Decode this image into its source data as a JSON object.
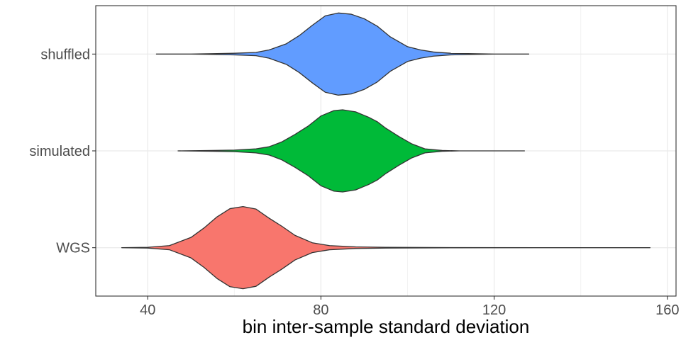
{
  "chart_data": {
    "type": "violin",
    "orientation": "horizontal",
    "xlabel": "bin inter-sample standard deviation",
    "ylabel": "",
    "xlim": [
      28,
      162
    ],
    "x_ticks": [
      40,
      80,
      120,
      160
    ],
    "x_minor_ticks": [
      60,
      100,
      140
    ],
    "grid": true,
    "legend": "none",
    "categories": [
      "shuffled",
      "simulated",
      "WGS"
    ],
    "series": [
      {
        "name": "shuffled",
        "color": "#619CFF",
        "min": 42,
        "max": 128,
        "density": [
          [
            42,
            0.0
          ],
          [
            50,
            0.0
          ],
          [
            55,
            0.01
          ],
          [
            60,
            0.02
          ],
          [
            65,
            0.04
          ],
          [
            68,
            0.1
          ],
          [
            72,
            0.25
          ],
          [
            75,
            0.45
          ],
          [
            78,
            0.7
          ],
          [
            81,
            0.93
          ],
          [
            84,
            1.0
          ],
          [
            87,
            0.97
          ],
          [
            90,
            0.86
          ],
          [
            93,
            0.68
          ],
          [
            96,
            0.42
          ],
          [
            100,
            0.18
          ],
          [
            103,
            0.1
          ],
          [
            106,
            0.05
          ],
          [
            110,
            0.02
          ],
          [
            115,
            0.01
          ],
          [
            120,
            0.0
          ],
          [
            128,
            0.0
          ]
        ]
      },
      {
        "name": "simulated",
        "color": "#00BA38",
        "min": 47,
        "max": 127,
        "density": [
          [
            47,
            0.0
          ],
          [
            55,
            0.01
          ],
          [
            60,
            0.02
          ],
          [
            65,
            0.05
          ],
          [
            68,
            0.1
          ],
          [
            71,
            0.22
          ],
          [
            74,
            0.4
          ],
          [
            77,
            0.6
          ],
          [
            80,
            0.85
          ],
          [
            83,
            0.98
          ],
          [
            85,
            1.0
          ],
          [
            88,
            0.95
          ],
          [
            91,
            0.82
          ],
          [
            93,
            0.71
          ],
          [
            95,
            0.55
          ],
          [
            98,
            0.35
          ],
          [
            101,
            0.17
          ],
          [
            104,
            0.05
          ],
          [
            108,
            0.01
          ],
          [
            112,
            0.0
          ],
          [
            120,
            0.0
          ],
          [
            127,
            0.0
          ]
        ]
      },
      {
        "name": "WGS",
        "color": "#F8766D",
        "min": 34,
        "max": 156,
        "density": [
          [
            34,
            0.0
          ],
          [
            40,
            0.01
          ],
          [
            45,
            0.05
          ],
          [
            50,
            0.25
          ],
          [
            53,
            0.48
          ],
          [
            56,
            0.75
          ],
          [
            59,
            0.95
          ],
          [
            62,
            1.0
          ],
          [
            65,
            0.94
          ],
          [
            68,
            0.72
          ],
          [
            71,
            0.52
          ],
          [
            74,
            0.3
          ],
          [
            78,
            0.12
          ],
          [
            82,
            0.05
          ],
          [
            88,
            0.02
          ],
          [
            95,
            0.01
          ],
          [
            110,
            0.003
          ],
          [
            130,
            0.0
          ],
          [
            156,
            0.0
          ]
        ]
      }
    ]
  }
}
